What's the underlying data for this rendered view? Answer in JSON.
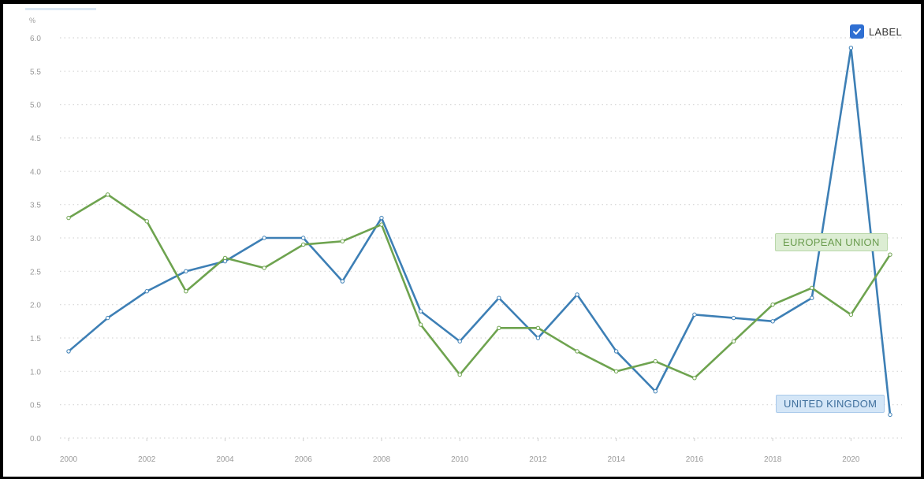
{
  "legend": {
    "toggle_label": "LABEL",
    "checked": true
  },
  "chart_data": {
    "type": "line",
    "unit": "%",
    "ylim": [
      0,
      6
    ],
    "yticks": [
      "0.0",
      "0.5",
      "1.0",
      "1.5",
      "2.0",
      "2.5",
      "3.0",
      "3.5",
      "4.0",
      "4.5",
      "5.0",
      "5.5",
      "6.0"
    ],
    "xticks": [
      "2000",
      "2002",
      "2004",
      "2006",
      "2008",
      "2010",
      "2012",
      "2014",
      "2016",
      "2018",
      "2020"
    ],
    "grid": true,
    "x": [
      2000,
      2001,
      2002,
      2003,
      2004,
      2005,
      2006,
      2007,
      2008,
      2009,
      2010,
      2011,
      2012,
      2013,
      2014,
      2015,
      2016,
      2017,
      2018,
      2019,
      2020,
      2021
    ],
    "series": [
      {
        "name": "UNITED KINGDOM",
        "color": "#3d7fb5",
        "values": [
          1.3,
          1.8,
          2.2,
          2.5,
          2.65,
          3.0,
          3.0,
          2.35,
          3.3,
          1.9,
          1.45,
          2.1,
          1.5,
          2.15,
          1.3,
          0.7,
          1.85,
          1.8,
          1.75,
          2.1,
          5.85,
          0.35
        ]
      },
      {
        "name": "EUROPEAN UNION",
        "color": "#6ea34f",
        "values": [
          3.3,
          3.65,
          3.25,
          2.2,
          2.7,
          2.55,
          2.9,
          2.95,
          3.2,
          1.7,
          0.95,
          1.65,
          1.65,
          1.3,
          1.0,
          1.15,
          0.9,
          1.45,
          2.0,
          2.25,
          1.85,
          2.75
        ]
      }
    ]
  }
}
